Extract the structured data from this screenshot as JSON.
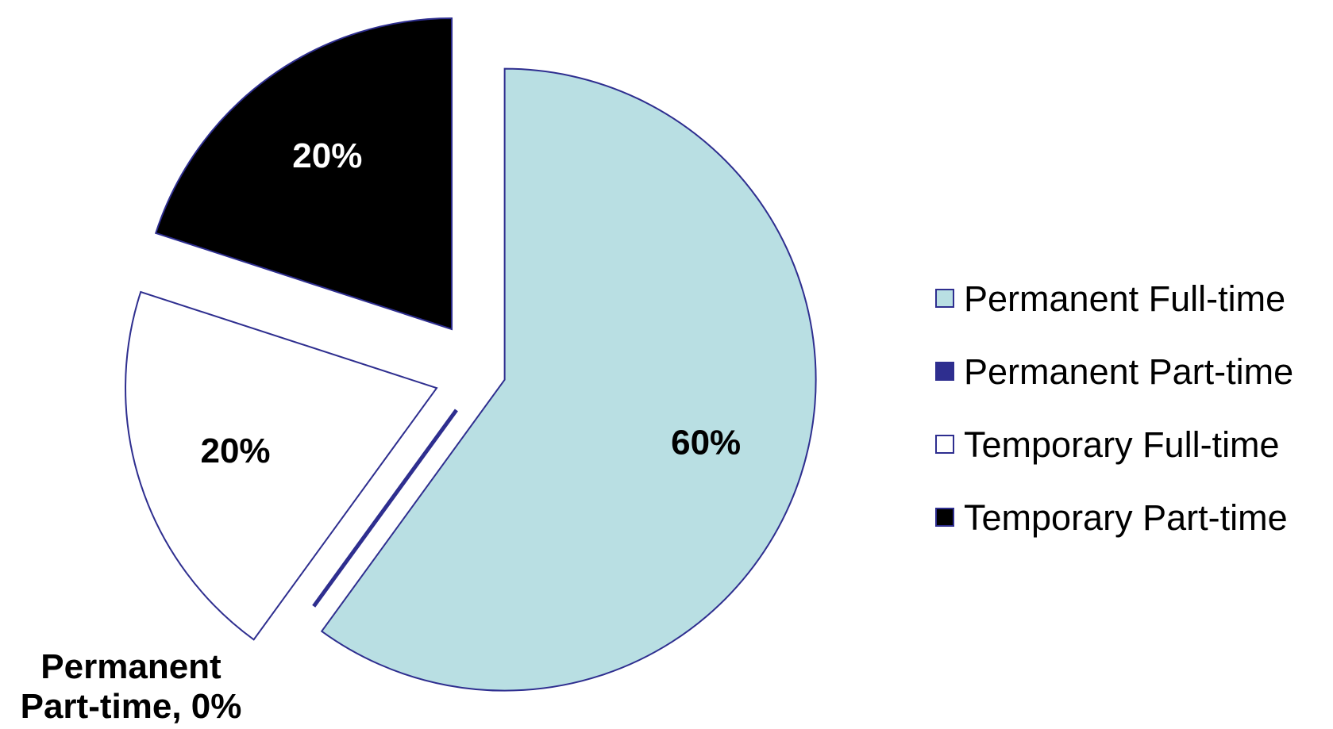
{
  "chart_data": {
    "type": "pie",
    "title": "",
    "exploded": true,
    "start_angle_deg": 0,
    "direction": "clockwise",
    "slices": [
      {
        "name": "Permanent Full-time",
        "value": 60,
        "label": "60%",
        "color": "#b9dfe3",
        "stroke": "#2e2e8f",
        "label_color": "#000000"
      },
      {
        "name": "Permanent Part-time",
        "value": 0,
        "label": "Permanent Part-time, 0%",
        "label_lines": [
          "Permanent",
          "Part-time, 0%"
        ],
        "color": "#2e2e8f",
        "stroke": "#2e2e8f",
        "label_color": "#000000"
      },
      {
        "name": "Temporary Full-time",
        "value": 20,
        "label": "20%",
        "color": "#ffffff",
        "stroke": "#2e2e8f",
        "label_color": "#000000"
      },
      {
        "name": "Temporary Part-time",
        "value": 20,
        "label": "20%",
        "color": "#000000",
        "stroke": "#2e2e8f",
        "label_color": "#ffffff"
      }
    ],
    "legend": {
      "position": "right",
      "items": [
        {
          "label": "Permanent Full-time",
          "color": "#b9dfe3"
        },
        {
          "label": "Permanent Part-time",
          "color": "#2e2e8f"
        },
        {
          "label": "Temporary Full-time",
          "color": "#ffffff"
        },
        {
          "label": "Temporary Part-time",
          "color": "#000000"
        }
      ]
    }
  }
}
